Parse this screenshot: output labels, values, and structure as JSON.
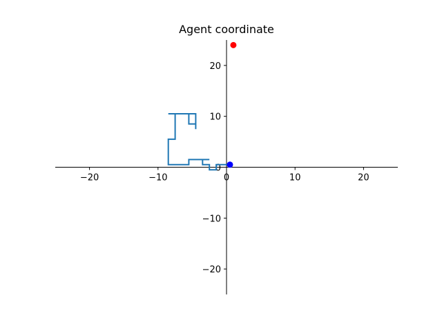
{
  "chart_data": {
    "type": "line",
    "title": "Agent coordinate",
    "xlabel": "",
    "ylabel": "",
    "xlim": [
      -25,
      25
    ],
    "ylim": [
      -25,
      25
    ],
    "xticks": [
      -20,
      -10,
      0,
      10,
      20
    ],
    "yticks": [
      -20,
      -10,
      0,
      10,
      20
    ],
    "xtick_labels": [
      "−20",
      "−10",
      "0",
      "10",
      "20"
    ],
    "ytick_labels": [
      "−20",
      "−10",
      "0",
      "10",
      "20"
    ],
    "grid": false,
    "spines": "centered at origin",
    "series": [
      {
        "type": "line",
        "color": "#1f77b4",
        "points": [
          [
            0.5,
            1.0
          ],
          [
            0.5,
            0.5
          ],
          [
            -1.5,
            0.5
          ],
          [
            -1.5,
            -0.5
          ],
          [
            -2.5,
            -0.5
          ],
          [
            -2.5,
            0.5
          ],
          [
            -3.5,
            0.5
          ],
          [
            -3.5,
            1.5
          ],
          [
            -2.5,
            1.5
          ],
          [
            -5.5,
            1.5
          ],
          [
            -5.5,
            0.5
          ],
          [
            -8.5,
            0.5
          ],
          [
            -8.5,
            5.5
          ],
          [
            -7.5,
            5.5
          ],
          [
            -7.5,
            10.5
          ],
          [
            -8.5,
            10.5
          ],
          [
            -4.5,
            10.5
          ],
          [
            -4.5,
            8.5
          ],
          [
            -5.5,
            8.5
          ],
          [
            -5.5,
            10.5
          ],
          [
            -4.5,
            10.5
          ],
          [
            -4.5,
            7.5
          ]
        ]
      },
      {
        "type": "scatter",
        "color": "#0000ff",
        "points": [
          [
            0.5,
            0.5
          ]
        ]
      },
      {
        "type": "scatter",
        "color": "#ff0000",
        "points": [
          [
            1.0,
            24.0
          ]
        ]
      }
    ]
  }
}
